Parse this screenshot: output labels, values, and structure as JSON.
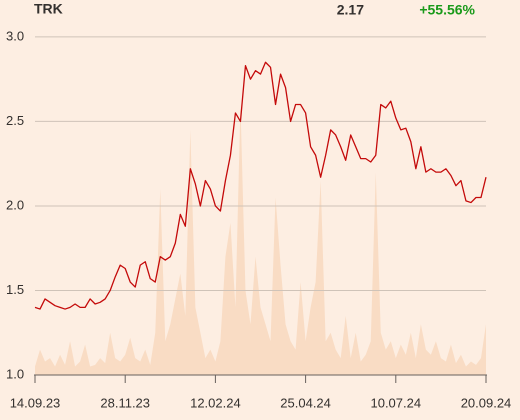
{
  "chart_data": {
    "type": "line",
    "title": "TRK",
    "last_price": "2.17",
    "change": "+55.56%",
    "change_color": "#1a9a1a",
    "categories": [
      "14.09.23",
      null,
      null,
      null,
      null,
      null,
      null,
      null,
      null,
      null,
      null,
      null,
      null,
      null,
      null,
      null,
      null,
      null,
      "28.11.23",
      null,
      null,
      null,
      null,
      null,
      null,
      null,
      null,
      null,
      null,
      null,
      null,
      null,
      null,
      null,
      null,
      null,
      "12.02.24",
      null,
      null,
      null,
      null,
      null,
      null,
      null,
      null,
      null,
      null,
      null,
      null,
      null,
      null,
      null,
      null,
      null,
      "25.04.24",
      null,
      null,
      null,
      null,
      null,
      null,
      null,
      null,
      null,
      null,
      null,
      null,
      null,
      null,
      null,
      null,
      null,
      "10.07.24",
      null,
      null,
      null,
      null,
      null,
      null,
      null,
      null,
      null,
      null,
      null,
      null,
      null,
      null,
      null,
      null,
      null,
      "20.09.24"
    ],
    "series": [
      {
        "name": "TRK",
        "color": "#c40a0a",
        "values": [
          1.4,
          1.39,
          1.45,
          1.43,
          1.41,
          1.4,
          1.39,
          1.4,
          1.42,
          1.4,
          1.4,
          1.45,
          1.42,
          1.43,
          1.45,
          1.5,
          1.58,
          1.65,
          1.63,
          1.55,
          1.52,
          1.65,
          1.67,
          1.57,
          1.55,
          1.7,
          1.68,
          1.7,
          1.78,
          1.95,
          1.88,
          2.22,
          2.13,
          2.0,
          2.15,
          2.1,
          2.0,
          1.97,
          2.15,
          2.3,
          2.55,
          2.5,
          2.83,
          2.75,
          2.8,
          2.78,
          2.85,
          2.82,
          2.6,
          2.78,
          2.7,
          2.5,
          2.6,
          2.6,
          2.55,
          2.35,
          2.3,
          2.17,
          2.3,
          2.45,
          2.42,
          2.35,
          2.27,
          2.42,
          2.35,
          2.28,
          2.28,
          2.26,
          2.3,
          2.6,
          2.58,
          2.62,
          2.52,
          2.45,
          2.46,
          2.38,
          2.22,
          2.35,
          2.2,
          2.22,
          2.2,
          2.2,
          2.22,
          2.18,
          2.12,
          2.15,
          2.03,
          2.02,
          2.05,
          2.05,
          2.17
        ]
      }
    ],
    "volume_area": {
      "color": "#f9dcc4",
      "values": [
        1.05,
        1.15,
        1.08,
        1.1,
        1.05,
        1.12,
        1.06,
        1.2,
        1.05,
        1.08,
        1.18,
        1.05,
        1.06,
        1.1,
        1.07,
        1.25,
        1.1,
        1.08,
        1.12,
        1.22,
        1.1,
        1.08,
        1.15,
        1.06,
        1.25,
        2.1,
        1.2,
        1.3,
        1.45,
        1.6,
        1.35,
        2.45,
        1.4,
        1.25,
        1.1,
        1.15,
        1.08,
        1.2,
        1.7,
        1.9,
        1.4,
        2.6,
        1.5,
        1.3,
        1.7,
        1.4,
        1.3,
        1.2,
        2.05,
        1.65,
        1.3,
        1.2,
        1.15,
        1.55,
        1.2,
        1.4,
        1.55,
        2.15,
        1.2,
        1.25,
        1.15,
        1.1,
        1.35,
        1.1,
        1.25,
        1.08,
        1.12,
        1.2,
        2.2,
        1.25,
        1.15,
        1.2,
        1.1,
        1.18,
        1.12,
        1.25,
        1.1,
        1.3,
        1.15,
        1.12,
        1.2,
        1.1,
        1.08,
        1.18,
        1.07,
        1.12,
        1.05,
        1.08,
        1.06,
        1.1,
        1.3
      ]
    },
    "ylim": [
      1.0,
      3.1
    ],
    "yticks": [
      {
        "value": 1.0,
        "label": "1.0"
      },
      {
        "value": 1.5,
        "label": "1.5"
      },
      {
        "value": 2.0,
        "label": "2.0"
      },
      {
        "value": 2.5,
        "label": "2.5"
      },
      {
        "value": 3.0,
        "label": "3.0"
      }
    ],
    "grid": true
  }
}
